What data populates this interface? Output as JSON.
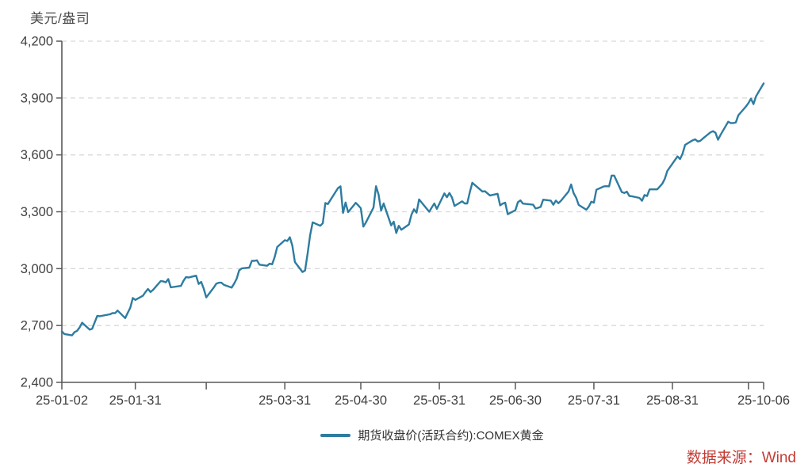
{
  "header": {
    "y_axis_unit_label": "美元/盎司"
  },
  "footer": {
    "source": "数据来源：Wind",
    "source_color": "#C43C34"
  },
  "palette": {
    "line": "#2E7CA0",
    "grid": "#D9D9D9",
    "axis": "#595959",
    "tick_text": "#404040"
  },
  "chart_data": {
    "type": "line",
    "title": "",
    "xlabel": "",
    "ylabel": "美元/盎司",
    "ylim": [
      2400,
      4200
    ],
    "grid": "horizontal-dashed",
    "legend_position": "bottom-center",
    "x_range": [
      "25-01-02",
      "25-10-06"
    ],
    "yticks": [
      {
        "value": 2400,
        "label": "2,400"
      },
      {
        "value": 2700,
        "label": "2,700"
      },
      {
        "value": 3000,
        "label": "3,000"
      },
      {
        "value": 3300,
        "label": "3,300"
      },
      {
        "value": 3600,
        "label": "3,600"
      },
      {
        "value": 3900,
        "label": "3,900"
      },
      {
        "value": 4200,
        "label": "4,200"
      }
    ],
    "xticks": [
      {
        "date": "25-01-02",
        "label": "25-01-02"
      },
      {
        "date": "25-01-31",
        "label": "25-01-31"
      },
      {
        "date": "25-02-28",
        "label": ""
      },
      {
        "date": "25-03-31",
        "label": "25-03-31"
      },
      {
        "date": "25-04-30",
        "label": "25-04-30"
      },
      {
        "date": "25-05-31",
        "label": "25-05-31"
      },
      {
        "date": "25-06-30",
        "label": "25-06-30"
      },
      {
        "date": "25-07-31",
        "label": "25-07-31"
      },
      {
        "date": "25-08-31",
        "label": "25-08-31"
      },
      {
        "date": "25-09-30",
        "label": ""
      },
      {
        "date": "25-10-06",
        "label": "25-10-06"
      }
    ],
    "series": [
      {
        "name": "期货收盘价(活跃合约):COMEX黄金",
        "color": "#2E7CA0",
        "dates": [
          "25-01-02",
          "25-01-03",
          "25-01-06",
          "25-01-07",
          "25-01-08",
          "25-01-09",
          "25-01-10",
          "25-01-13",
          "25-01-14",
          "25-01-15",
          "25-01-16",
          "25-01-17",
          "25-01-21",
          "25-01-22",
          "25-01-23",
          "25-01-24",
          "25-01-27",
          "25-01-28",
          "25-01-29",
          "25-01-30",
          "25-01-31",
          "25-02-03",
          "25-02-04",
          "25-02-05",
          "25-02-06",
          "25-02-07",
          "25-02-10",
          "25-02-11",
          "25-02-12",
          "25-02-13",
          "25-02-14",
          "25-02-18",
          "25-02-19",
          "25-02-20",
          "25-02-21",
          "25-02-24",
          "25-02-25",
          "25-02-26",
          "25-02-27",
          "25-02-28",
          "25-03-03",
          "25-03-04",
          "25-03-05",
          "25-03-06",
          "25-03-07",
          "25-03-10",
          "25-03-11",
          "25-03-12",
          "25-03-13",
          "25-03-14",
          "25-03-17",
          "25-03-18",
          "25-03-19",
          "25-03-20",
          "25-03-21",
          "25-03-24",
          "25-03-25",
          "25-03-26",
          "25-03-27",
          "25-03-28",
          "25-03-31",
          "25-04-01",
          "25-04-02",
          "25-04-03",
          "25-04-04",
          "25-04-07",
          "25-04-08",
          "25-04-09",
          "25-04-10",
          "25-04-11",
          "25-04-14",
          "25-04-15",
          "25-04-16",
          "25-04-17",
          "25-04-21",
          "25-04-22",
          "25-04-23",
          "25-04-24",
          "25-04-25",
          "25-04-28",
          "25-04-29",
          "25-04-30",
          "25-05-01",
          "25-05-02",
          "25-05-05",
          "25-05-06",
          "25-05-07",
          "25-05-08",
          "25-05-09",
          "25-05-12",
          "25-05-13",
          "25-05-14",
          "25-05-15",
          "25-05-16",
          "25-05-19",
          "25-05-20",
          "25-05-21",
          "25-05-22",
          "25-05-23",
          "25-05-27",
          "25-05-28",
          "25-05-29",
          "25-05-30",
          "25-06-02",
          "25-06-03",
          "25-06-04",
          "25-06-05",
          "25-06-06",
          "25-06-09",
          "25-06-10",
          "25-06-11",
          "25-06-12",
          "25-06-13",
          "25-06-16",
          "25-06-17",
          "25-06-18",
          "25-06-20",
          "25-06-23",
          "25-06-24",
          "25-06-25",
          "25-06-26",
          "25-06-27",
          "25-06-30",
          "25-07-01",
          "25-07-02",
          "25-07-03",
          "25-07-07",
          "25-07-08",
          "25-07-09",
          "25-07-10",
          "25-07-11",
          "25-07-14",
          "25-07-15",
          "25-07-16",
          "25-07-17",
          "25-07-18",
          "25-07-21",
          "25-07-22",
          "25-07-23",
          "25-07-24",
          "25-07-25",
          "25-07-28",
          "25-07-29",
          "25-07-30",
          "25-07-31",
          "25-08-01",
          "25-08-04",
          "25-08-05",
          "25-08-06",
          "25-08-07",
          "25-08-08",
          "25-08-11",
          "25-08-12",
          "25-08-13",
          "25-08-14",
          "25-08-15",
          "25-08-18",
          "25-08-19",
          "25-08-20",
          "25-08-21",
          "25-08-22",
          "25-08-25",
          "25-08-26",
          "25-08-27",
          "25-08-28",
          "25-08-29",
          "25-09-02",
          "25-09-03",
          "25-09-04",
          "25-09-05",
          "25-09-08",
          "25-09-09",
          "25-09-10",
          "25-09-11",
          "25-09-12",
          "25-09-15",
          "25-09-16",
          "25-09-17",
          "25-09-18",
          "25-09-19",
          "25-09-22",
          "25-09-23",
          "25-09-24",
          "25-09-25",
          "25-09-26",
          "25-09-29",
          "25-09-30",
          "25-10-01",
          "25-10-02",
          "25-10-03",
          "25-10-06"
        ],
        "values": [
          2669,
          2655,
          2648,
          2665,
          2672,
          2690,
          2715,
          2678,
          2683,
          2718,
          2751,
          2749,
          2759,
          2766,
          2765,
          2779,
          2739,
          2767,
          2794,
          2845,
          2835,
          2857,
          2876,
          2893,
          2877,
          2888,
          2934,
          2933,
          2928,
          2945,
          2901,
          2909,
          2936,
          2956,
          2953,
          2963,
          2919,
          2930,
          2895,
          2848,
          2901,
          2921,
          2926,
          2926,
          2914,
          2900,
          2921,
          2947,
          2991,
          3001,
          3006,
          3041,
          3041,
          3044,
          3021,
          3015,
          3026,
          3023,
          3061,
          3114,
          3150,
          3146,
          3166,
          3121,
          3035,
          2982,
          2990,
          3079,
          3177,
          3244,
          3226,
          3240,
          3346,
          3341,
          3425,
          3434,
          3294,
          3349,
          3298,
          3347,
          3334,
          3319,
          3222,
          3243,
          3322,
          3435,
          3391,
          3306,
          3344,
          3228,
          3248,
          3188,
          3226,
          3205,
          3233,
          3285,
          3313,
          3295,
          3365,
          3300,
          3323,
          3344,
          3315,
          3397,
          3377,
          3399,
          3375,
          3331,
          3355,
          3344,
          3344,
          3402,
          3453,
          3418,
          3407,
          3408,
          3386,
          3395,
          3334,
          3343,
          3348,
          3287,
          3308,
          3350,
          3360,
          3343,
          3337,
          3317,
          3321,
          3326,
          3364,
          3359,
          3337,
          3359,
          3345,
          3358,
          3407,
          3444,
          3398,
          3374,
          3336,
          3311,
          3327,
          3353,
          3348,
          3416,
          3434,
          3435,
          3434,
          3491,
          3491,
          3404,
          3399,
          3406,
          3383,
          3382,
          3373,
          3358,
          3388,
          3383,
          3418,
          3418,
          3433,
          3448,
          3474,
          3516,
          3592,
          3578,
          3607,
          3653,
          3677,
          3682,
          3671,
          3674,
          3686,
          3719,
          3725,
          3717,
          3680,
          3706,
          3775,
          3768,
          3768,
          3771,
          3809,
          3855,
          3873,
          3897,
          3868,
          3909,
          3977
        ]
      }
    ]
  }
}
